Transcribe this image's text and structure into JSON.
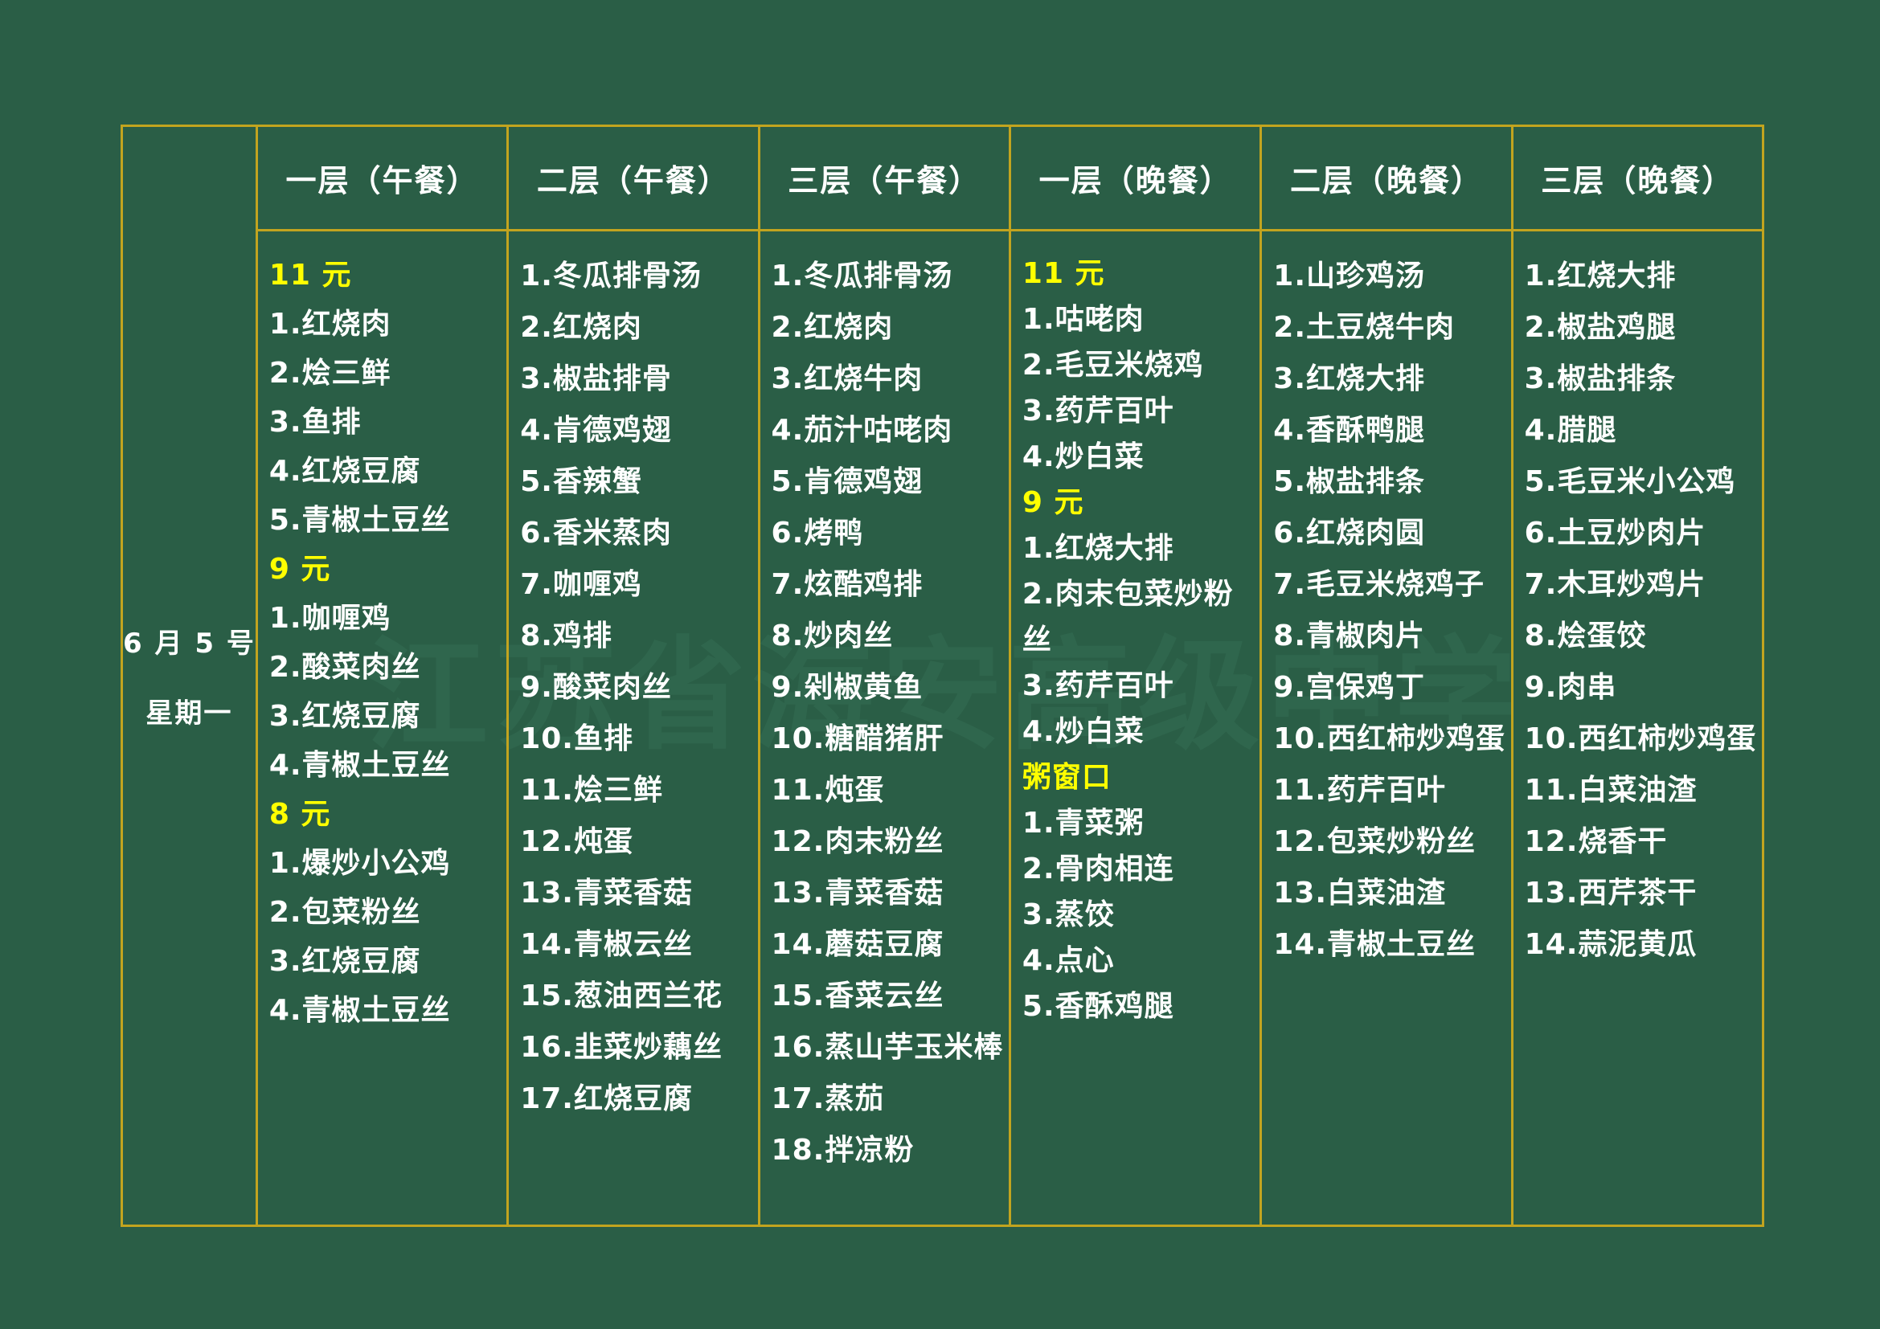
{
  "date": {
    "month_day": "6 月 5 号",
    "weekday": "星期一"
  },
  "watermark_text": "江苏省海安高级中学",
  "colors": {
    "bg": "#2a5e46",
    "line": "#c2a41f",
    "text": "#ffffff",
    "accent": "#ffff00",
    "watermark": "#31684f"
  },
  "columns": [
    {
      "header": "一层（午餐）",
      "items": [
        {
          "text": "11 元",
          "highlight": true
        },
        {
          "text": "1.红烧肉",
          "highlight": false
        },
        {
          "text": "2.烩三鲜",
          "highlight": false
        },
        {
          "text": "3.鱼排",
          "highlight": false
        },
        {
          "text": "4.红烧豆腐",
          "highlight": false
        },
        {
          "text": "5.青椒土豆丝",
          "highlight": false
        },
        {
          "text": "9 元",
          "highlight": true
        },
        {
          "text": "1.咖喱鸡",
          "highlight": false
        },
        {
          "text": "2.酸菜肉丝",
          "highlight": false
        },
        {
          "text": "3.红烧豆腐",
          "highlight": false
        },
        {
          "text": "4.青椒土豆丝",
          "highlight": false
        },
        {
          "text": "8 元",
          "highlight": true
        },
        {
          "text": "1.爆炒小公鸡",
          "highlight": false
        },
        {
          "text": "2.包菜粉丝",
          "highlight": false
        },
        {
          "text": "3.红烧豆腐",
          "highlight": false
        },
        {
          "text": "4.青椒土豆丝",
          "highlight": false
        }
      ]
    },
    {
      "header": "二层（午餐）",
      "items": [
        {
          "text": "1.冬瓜排骨汤",
          "highlight": false
        },
        {
          "text": "2.红烧肉",
          "highlight": false
        },
        {
          "text": "3.椒盐排骨",
          "highlight": false
        },
        {
          "text": "4.肯德鸡翅",
          "highlight": false
        },
        {
          "text": "5.香辣蟹",
          "highlight": false
        },
        {
          "text": "6.香米蒸肉",
          "highlight": false
        },
        {
          "text": "7.咖喱鸡",
          "highlight": false
        },
        {
          "text": "8.鸡排",
          "highlight": false
        },
        {
          "text": "9.酸菜肉丝",
          "highlight": false
        },
        {
          "text": "10.鱼排",
          "highlight": false
        },
        {
          "text": "11.烩三鲜",
          "highlight": false
        },
        {
          "text": "12.炖蛋",
          "highlight": false
        },
        {
          "text": "13.青菜香菇",
          "highlight": false
        },
        {
          "text": "14.青椒云丝",
          "highlight": false
        },
        {
          "text": "15.葱油西兰花",
          "highlight": false
        },
        {
          "text": "16.韭菜炒藕丝",
          "highlight": false
        },
        {
          "text": "17.红烧豆腐",
          "highlight": false
        }
      ]
    },
    {
      "header": "三层（午餐）",
      "items": [
        {
          "text": "1.冬瓜排骨汤",
          "highlight": false
        },
        {
          "text": "2.红烧肉",
          "highlight": false
        },
        {
          "text": "3.红烧牛肉",
          "highlight": false
        },
        {
          "text": "4.茄汁咕咾肉",
          "highlight": false
        },
        {
          "text": "5.肯德鸡翅",
          "highlight": false
        },
        {
          "text": "6.烤鸭",
          "highlight": false
        },
        {
          "text": "7.炫酷鸡排",
          "highlight": false
        },
        {
          "text": "8.炒肉丝",
          "highlight": false
        },
        {
          "text": "9.剁椒黄鱼",
          "highlight": false
        },
        {
          "text": "10.糖醋猪肝",
          "highlight": false
        },
        {
          "text": "11.炖蛋",
          "highlight": false
        },
        {
          "text": "12.肉末粉丝",
          "highlight": false
        },
        {
          "text": "13.青菜香菇",
          "highlight": false
        },
        {
          "text": "14.蘑菇豆腐",
          "highlight": false
        },
        {
          "text": "15.香菜云丝",
          "highlight": false
        },
        {
          "text": "16.蒸山芋玉米棒",
          "highlight": false
        },
        {
          "text": "17.蒸茄",
          "highlight": false
        },
        {
          "text": "18.拌凉粉",
          "highlight": false
        }
      ]
    },
    {
      "header": "一层（晚餐）",
      "items": [
        {
          "text": "11 元",
          "highlight": true
        },
        {
          "text": "1.咕咾肉",
          "highlight": false
        },
        {
          "text": "2.毛豆米烧鸡",
          "highlight": false
        },
        {
          "text": "3.药芹百叶",
          "highlight": false
        },
        {
          "text": "4.炒白菜",
          "highlight": false
        },
        {
          "text": "9 元",
          "highlight": true
        },
        {
          "text": "1.红烧大排",
          "highlight": false
        },
        {
          "text": "2.肉末包菜炒粉丝",
          "highlight": false
        },
        {
          "text": "3.药芹百叶",
          "highlight": false
        },
        {
          "text": "4.炒白菜",
          "highlight": false
        },
        {
          "text": "粥窗口",
          "highlight": true
        },
        {
          "text": "1.青菜粥",
          "highlight": false
        },
        {
          "text": "2.骨肉相连",
          "highlight": false
        },
        {
          "text": "3.蒸饺",
          "highlight": false
        },
        {
          "text": "4.点心",
          "highlight": false
        },
        {
          "text": "5.香酥鸡腿",
          "highlight": false
        }
      ]
    },
    {
      "header": "二层（晚餐）",
      "items": [
        {
          "text": "1.山珍鸡汤",
          "highlight": false
        },
        {
          "text": "2.土豆烧牛肉",
          "highlight": false
        },
        {
          "text": "3.红烧大排",
          "highlight": false
        },
        {
          "text": "4.香酥鸭腿",
          "highlight": false
        },
        {
          "text": "5.椒盐排条",
          "highlight": false
        },
        {
          "text": "6.红烧肉圆",
          "highlight": false
        },
        {
          "text": "7.毛豆米烧鸡子",
          "highlight": false
        },
        {
          "text": "8.青椒肉片",
          "highlight": false
        },
        {
          "text": "9.宫保鸡丁",
          "highlight": false
        },
        {
          "text": "10.西红柿炒鸡蛋",
          "highlight": false
        },
        {
          "text": "11.药芹百叶",
          "highlight": false
        },
        {
          "text": "12.包菜炒粉丝",
          "highlight": false
        },
        {
          "text": "13.白菜油渣",
          "highlight": false
        },
        {
          "text": "14.青椒土豆丝",
          "highlight": false
        }
      ]
    },
    {
      "header": "三层（晚餐）",
      "items": [
        {
          "text": "1.红烧大排",
          "highlight": false
        },
        {
          "text": "2.椒盐鸡腿",
          "highlight": false
        },
        {
          "text": "3.椒盐排条",
          "highlight": false
        },
        {
          "text": "4.腊腿",
          "highlight": false
        },
        {
          "text": "5.毛豆米小公鸡",
          "highlight": false
        },
        {
          "text": "6.土豆炒肉片",
          "highlight": false
        },
        {
          "text": "7.木耳炒鸡片",
          "highlight": false
        },
        {
          "text": "8.烩蛋饺",
          "highlight": false
        },
        {
          "text": "9.肉串",
          "highlight": false
        },
        {
          "text": "10.西红柿炒鸡蛋",
          "highlight": false
        },
        {
          "text": "11.白菜油渣",
          "highlight": false
        },
        {
          "text": "12.烧香干",
          "highlight": false
        },
        {
          "text": "13.西芹茶干",
          "highlight": false
        },
        {
          "text": "14.蒜泥黄瓜",
          "highlight": false
        }
      ]
    }
  ]
}
